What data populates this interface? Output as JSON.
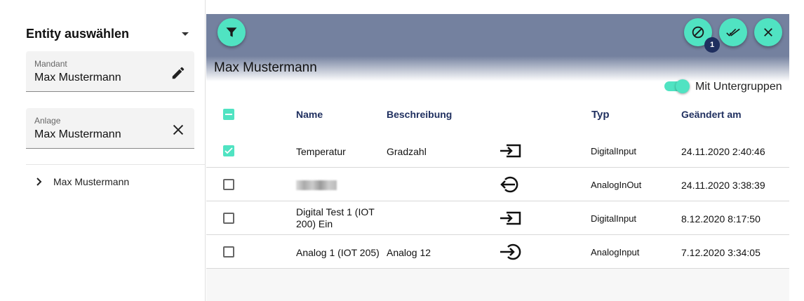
{
  "sidebar": {
    "title": "Entity auswählen",
    "mandant": {
      "label": "Mandant",
      "value": "Max Mustermann",
      "icon": "pencil-icon"
    },
    "anlage": {
      "label": "Anlage",
      "value": "Max Mustermann",
      "icon": "close-icon"
    },
    "tree": [
      {
        "label": "Max Mustermann"
      }
    ]
  },
  "toolbar": {
    "badge": "1",
    "accent": "#50e3c2",
    "band_color": "#74819f"
  },
  "main": {
    "title": "Max Mustermann",
    "toggle_label": "Mit Untergruppen",
    "toggle_on": true,
    "columns": [
      "Name",
      "Beschreibung",
      "Typ",
      "Geändert am"
    ],
    "rows": [
      {
        "checked": true,
        "name": "Temperatur",
        "desc": "Gradzahl",
        "icon": "input-icon",
        "type": "DigitalInput",
        "changed": "24.11.2020 2:40:46"
      },
      {
        "checked": false,
        "name": "",
        "desc": "",
        "icon": "output-circle-icon",
        "type": "AnalogInOut",
        "changed": "24.11.2020 3:38:39"
      },
      {
        "checked": false,
        "name": "Digital Test 1 (IOT 200) Ein",
        "desc": "",
        "icon": "input-icon",
        "type": "DigitalInput",
        "changed": "8.12.2020 8:17:50"
      },
      {
        "checked": false,
        "name": "Analog 1 (IOT 205)",
        "desc": "Analog 12",
        "icon": "input-circle-icon",
        "type": "AnalogInput",
        "changed": "7.12.2020 3:34:05"
      }
    ]
  }
}
